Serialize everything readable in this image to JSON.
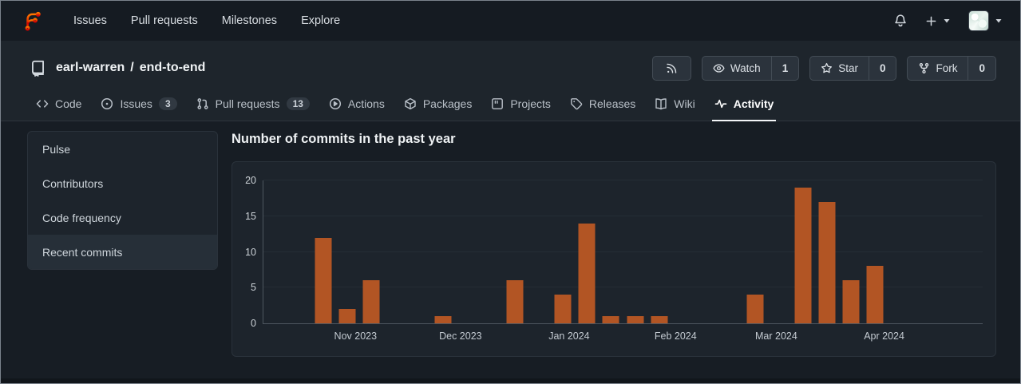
{
  "navbar": {
    "brand": "Forgejo",
    "links": [
      "Issues",
      "Pull requests",
      "Milestones",
      "Explore"
    ]
  },
  "repo_header": {
    "owner": "earl-warren",
    "separator": "/",
    "name": "end-to-end",
    "actions": {
      "watch": {
        "label": "Watch",
        "count": "1"
      },
      "star": {
        "label": "Star",
        "count": "0"
      },
      "fork": {
        "label": "Fork",
        "count": "0"
      }
    }
  },
  "tabs": [
    {
      "label": "Code"
    },
    {
      "label": "Issues",
      "badge": "3"
    },
    {
      "label": "Pull requests",
      "badge": "13"
    },
    {
      "label": "Actions"
    },
    {
      "label": "Packages"
    },
    {
      "label": "Projects"
    },
    {
      "label": "Releases"
    },
    {
      "label": "Wiki"
    },
    {
      "label": "Activity",
      "active": true
    }
  ],
  "sidebar": {
    "items": [
      {
        "label": "Pulse"
      },
      {
        "label": "Contributors"
      },
      {
        "label": "Code frequency"
      },
      {
        "label": "Recent commits",
        "active": true
      }
    ]
  },
  "chart_data": {
    "type": "bar",
    "title": "Number of commits in the past year",
    "x_unit": "week",
    "ylim": [
      0,
      20
    ],
    "yticks": [
      0,
      5,
      10,
      15,
      20
    ],
    "grid": true,
    "legend": "none",
    "bar_color": "#b25524",
    "weekly_commits": [
      0,
      0,
      12,
      2,
      6,
      0,
      0,
      1,
      0,
      0,
      6,
      0,
      4,
      14,
      1,
      1,
      1,
      0,
      0,
      0,
      4,
      0,
      19,
      17,
      6,
      8,
      0,
      0,
      0,
      0
    ],
    "month_ticks": [
      {
        "label": "Nov 2023",
        "pos_pct": 12.8
      },
      {
        "label": "Dec 2023",
        "pos_pct": 27.4
      },
      {
        "label": "Jan 2024",
        "pos_pct": 42.5
      },
      {
        "label": "Feb 2024",
        "pos_pct": 57.3
      },
      {
        "label": "Mar 2024",
        "pos_pct": 71.3
      },
      {
        "label": "Apr 2024",
        "pos_pct": 86.3
      }
    ]
  }
}
